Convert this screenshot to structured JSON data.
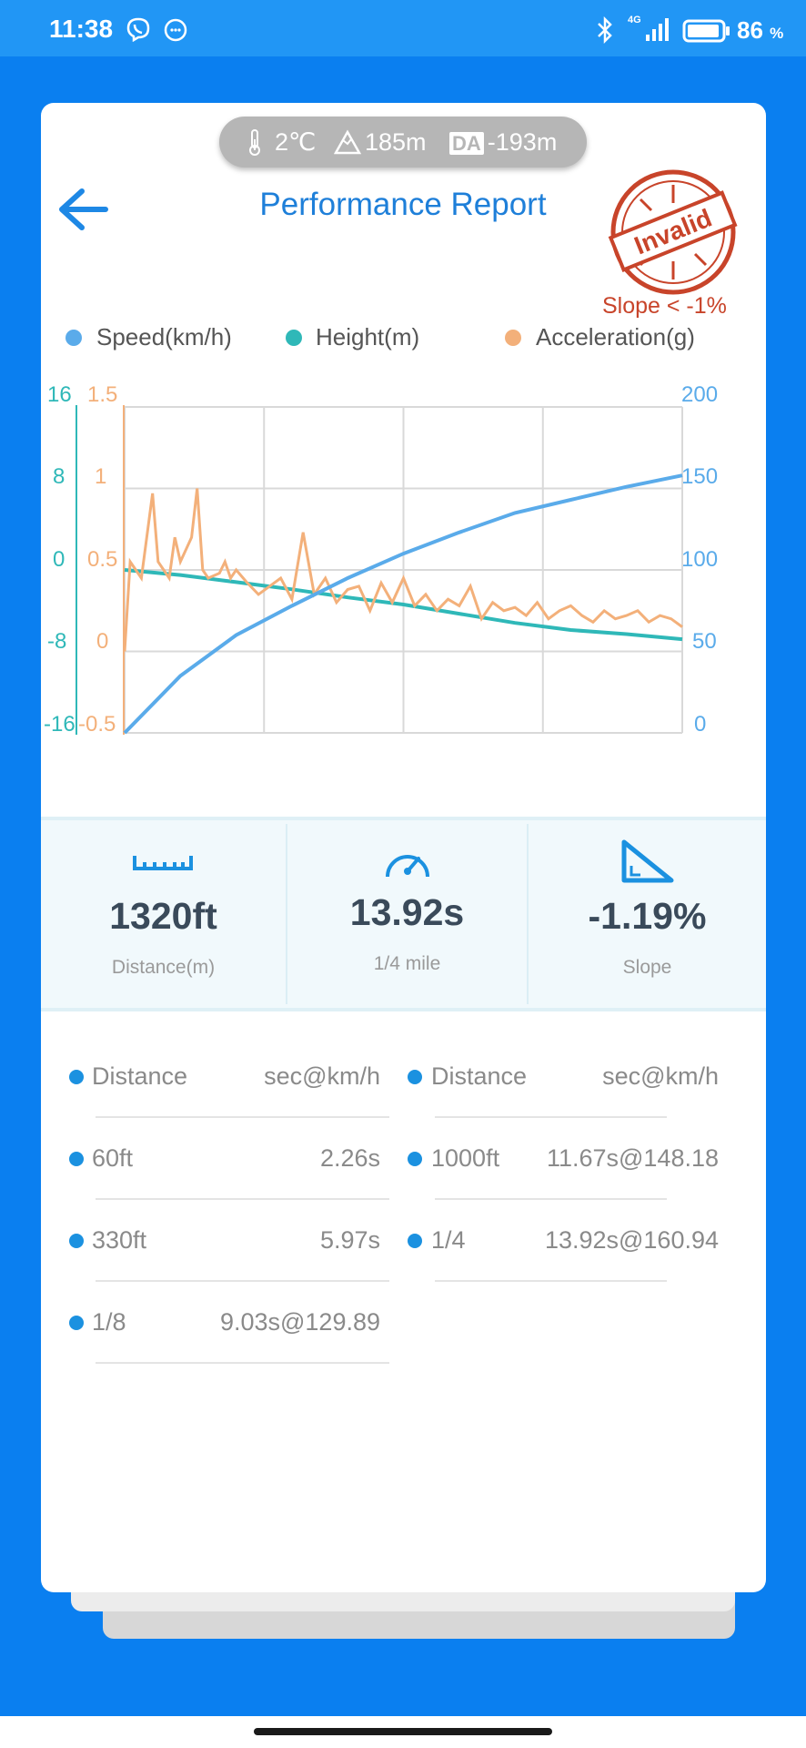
{
  "status_bar": {
    "time": "11:38",
    "network": "4G",
    "battery_percent": "86",
    "percent_sign": "%"
  },
  "header": {
    "temperature": "2℃",
    "altitude": "185m",
    "da_label": "DA",
    "density_altitude": "-193m",
    "title": "Performance Report",
    "stamp_text": "Invalid",
    "stamp_note": "Slope < -1%"
  },
  "chart_data": {
    "type": "line",
    "x_ticks": 5,
    "series": [
      {
        "name": "Speed(km/h)",
        "color": "#5aabea",
        "axis": "right",
        "x": [
          0,
          0.1,
          0.2,
          0.3,
          0.4,
          0.5,
          0.6,
          0.7,
          0.8,
          0.9,
          1.0
        ],
        "values": [
          0,
          35,
          60,
          78,
          95,
          110,
          123,
          135,
          143,
          151,
          158
        ]
      },
      {
        "name": "Height(m)",
        "color": "#2fb8b8",
        "axis": "left-outer",
        "x": [
          0,
          0.1,
          0.2,
          0.3,
          0.4,
          0.5,
          0.6,
          0.7,
          0.8,
          0.9,
          1.0
        ],
        "values": [
          0,
          -0.5,
          -1.2,
          -1.9,
          -2.7,
          -3.4,
          -4.3,
          -5.2,
          -5.9,
          -6.3,
          -6.8
        ]
      },
      {
        "name": "Acceleration(g)",
        "color": "#f3b07a",
        "axis": "left-inner",
        "x": [
          0,
          0.01,
          0.03,
          0.05,
          0.06,
          0.08,
          0.09,
          0.1,
          0.12,
          0.13,
          0.14,
          0.15,
          0.17,
          0.18,
          0.19,
          0.2,
          0.22,
          0.24,
          0.26,
          0.28,
          0.3,
          0.32,
          0.34,
          0.36,
          0.38,
          0.4,
          0.42,
          0.44,
          0.46,
          0.48,
          0.5,
          0.52,
          0.54,
          0.56,
          0.58,
          0.6,
          0.62,
          0.64,
          0.66,
          0.68,
          0.7,
          0.72,
          0.74,
          0.76,
          0.78,
          0.8,
          0.82,
          0.84,
          0.86,
          0.88,
          0.9,
          0.92,
          0.94,
          0.96,
          0.98,
          1.0
        ],
        "values": [
          0.0,
          0.55,
          0.45,
          0.97,
          0.55,
          0.45,
          0.7,
          0.55,
          0.7,
          1.0,
          0.5,
          0.45,
          0.48,
          0.55,
          0.45,
          0.5,
          0.42,
          0.35,
          0.4,
          0.45,
          0.32,
          0.73,
          0.35,
          0.45,
          0.3,
          0.38,
          0.4,
          0.25,
          0.42,
          0.3,
          0.45,
          0.28,
          0.35,
          0.25,
          0.32,
          0.28,
          0.4,
          0.2,
          0.3,
          0.25,
          0.27,
          0.22,
          0.3,
          0.2,
          0.25,
          0.28,
          0.22,
          0.18,
          0.25,
          0.2,
          0.22,
          0.25,
          0.18,
          0.22,
          0.2,
          0.15
        ]
      }
    ],
    "axes": {
      "left_outer": {
        "ticks": [
          "16",
          "8",
          "0",
          "-8",
          "-16"
        ],
        "ylim": [
          -16,
          16
        ]
      },
      "left_inner": {
        "ticks": [
          "1.5",
          "1",
          "0.5",
          "0",
          "-0.5"
        ],
        "ylim": [
          -0.5,
          1.5
        ]
      },
      "right": {
        "ticks": [
          "200",
          "150",
          "100",
          "50",
          "0"
        ],
        "ylim": [
          0,
          200
        ]
      }
    },
    "grid": true,
    "legend_position": "top"
  },
  "stats": [
    {
      "icon": "ruler-icon",
      "value": "1320ft",
      "label": "Distance(m)"
    },
    {
      "icon": "speedometer-icon",
      "value": "13.92s",
      "label": "1/4 mile"
    },
    {
      "icon": "slope-icon",
      "value": "-1.19%",
      "label": "Slope"
    }
  ],
  "results": {
    "left": [
      {
        "distance": "Distance",
        "value": "sec@km/h"
      },
      {
        "distance": "60ft",
        "value": "2.26s"
      },
      {
        "distance": "330ft",
        "value": "5.97s"
      },
      {
        "distance": "1/8",
        "value": "9.03s@129.89"
      }
    ],
    "right": [
      {
        "distance": "Distance",
        "value": "sec@km/h"
      },
      {
        "distance": "1000ft",
        "value": "11.67s@148.18"
      },
      {
        "distance": "1/4",
        "value": "13.92s@160.94"
      }
    ]
  },
  "colors": {
    "primary": "#0a7ff0",
    "accent": "#1e7fd9",
    "stamp": "#c8442a"
  }
}
